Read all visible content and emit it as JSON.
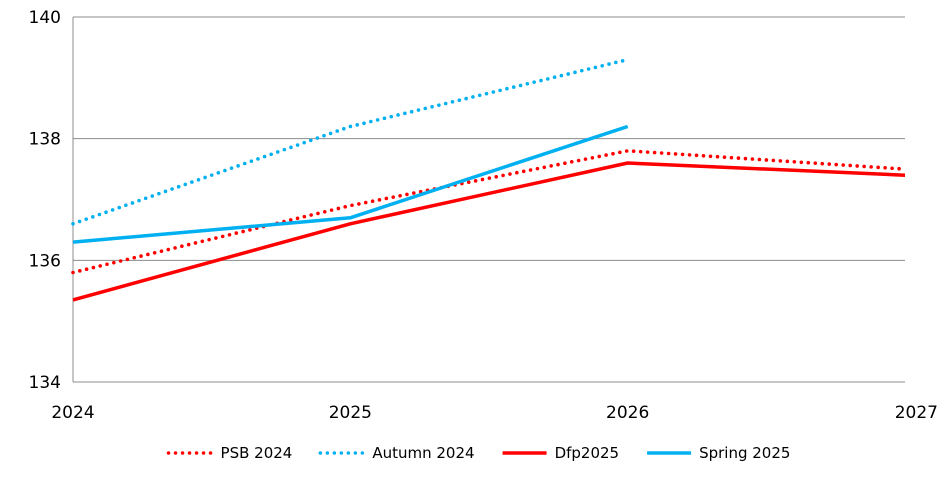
{
  "chart_data": {
    "type": "line",
    "title": "",
    "xlabel": "",
    "ylabel": "",
    "xlim": [
      2024,
      2027
    ],
    "ylim": [
      134,
      140
    ],
    "x_ticks": [
      "2024",
      "2025",
      "2026",
      "2027"
    ],
    "y_ticks": [
      "134",
      "136",
      "138",
      "140"
    ],
    "grid": {
      "horizontal": true,
      "vertical": false
    },
    "legend_position": "bottom",
    "series": [
      {
        "name": "PSB 2024",
        "style": "dotted",
        "color": "#ff0000",
        "points": [
          {
            "x": 2024,
            "y": 135.8
          },
          {
            "x": 2025,
            "y": 136.9
          },
          {
            "x": 2026,
            "y": 137.8
          },
          {
            "x": 2027,
            "y": 137.5
          }
        ]
      },
      {
        "name": "Autumn 2024",
        "style": "dotted",
        "color": "#00b0f0",
        "points": [
          {
            "x": 2024,
            "y": 136.6
          },
          {
            "x": 2025,
            "y": 138.2
          },
          {
            "x": 2026,
            "y": 139.3
          }
        ]
      },
      {
        "name": "Dfp2025",
        "style": "solid",
        "color": "#ff0000",
        "points": [
          {
            "x": 2024,
            "y": 135.35
          },
          {
            "x": 2025,
            "y": 136.6
          },
          {
            "x": 2026,
            "y": 137.6
          },
          {
            "x": 2027,
            "y": 137.4
          }
        ]
      },
      {
        "name": "Spring 2025",
        "style": "solid",
        "color": "#00b0f0",
        "points": [
          {
            "x": 2024,
            "y": 136.3
          },
          {
            "x": 2025,
            "y": 136.7
          },
          {
            "x": 2026,
            "y": 138.2
          }
        ]
      }
    ]
  }
}
